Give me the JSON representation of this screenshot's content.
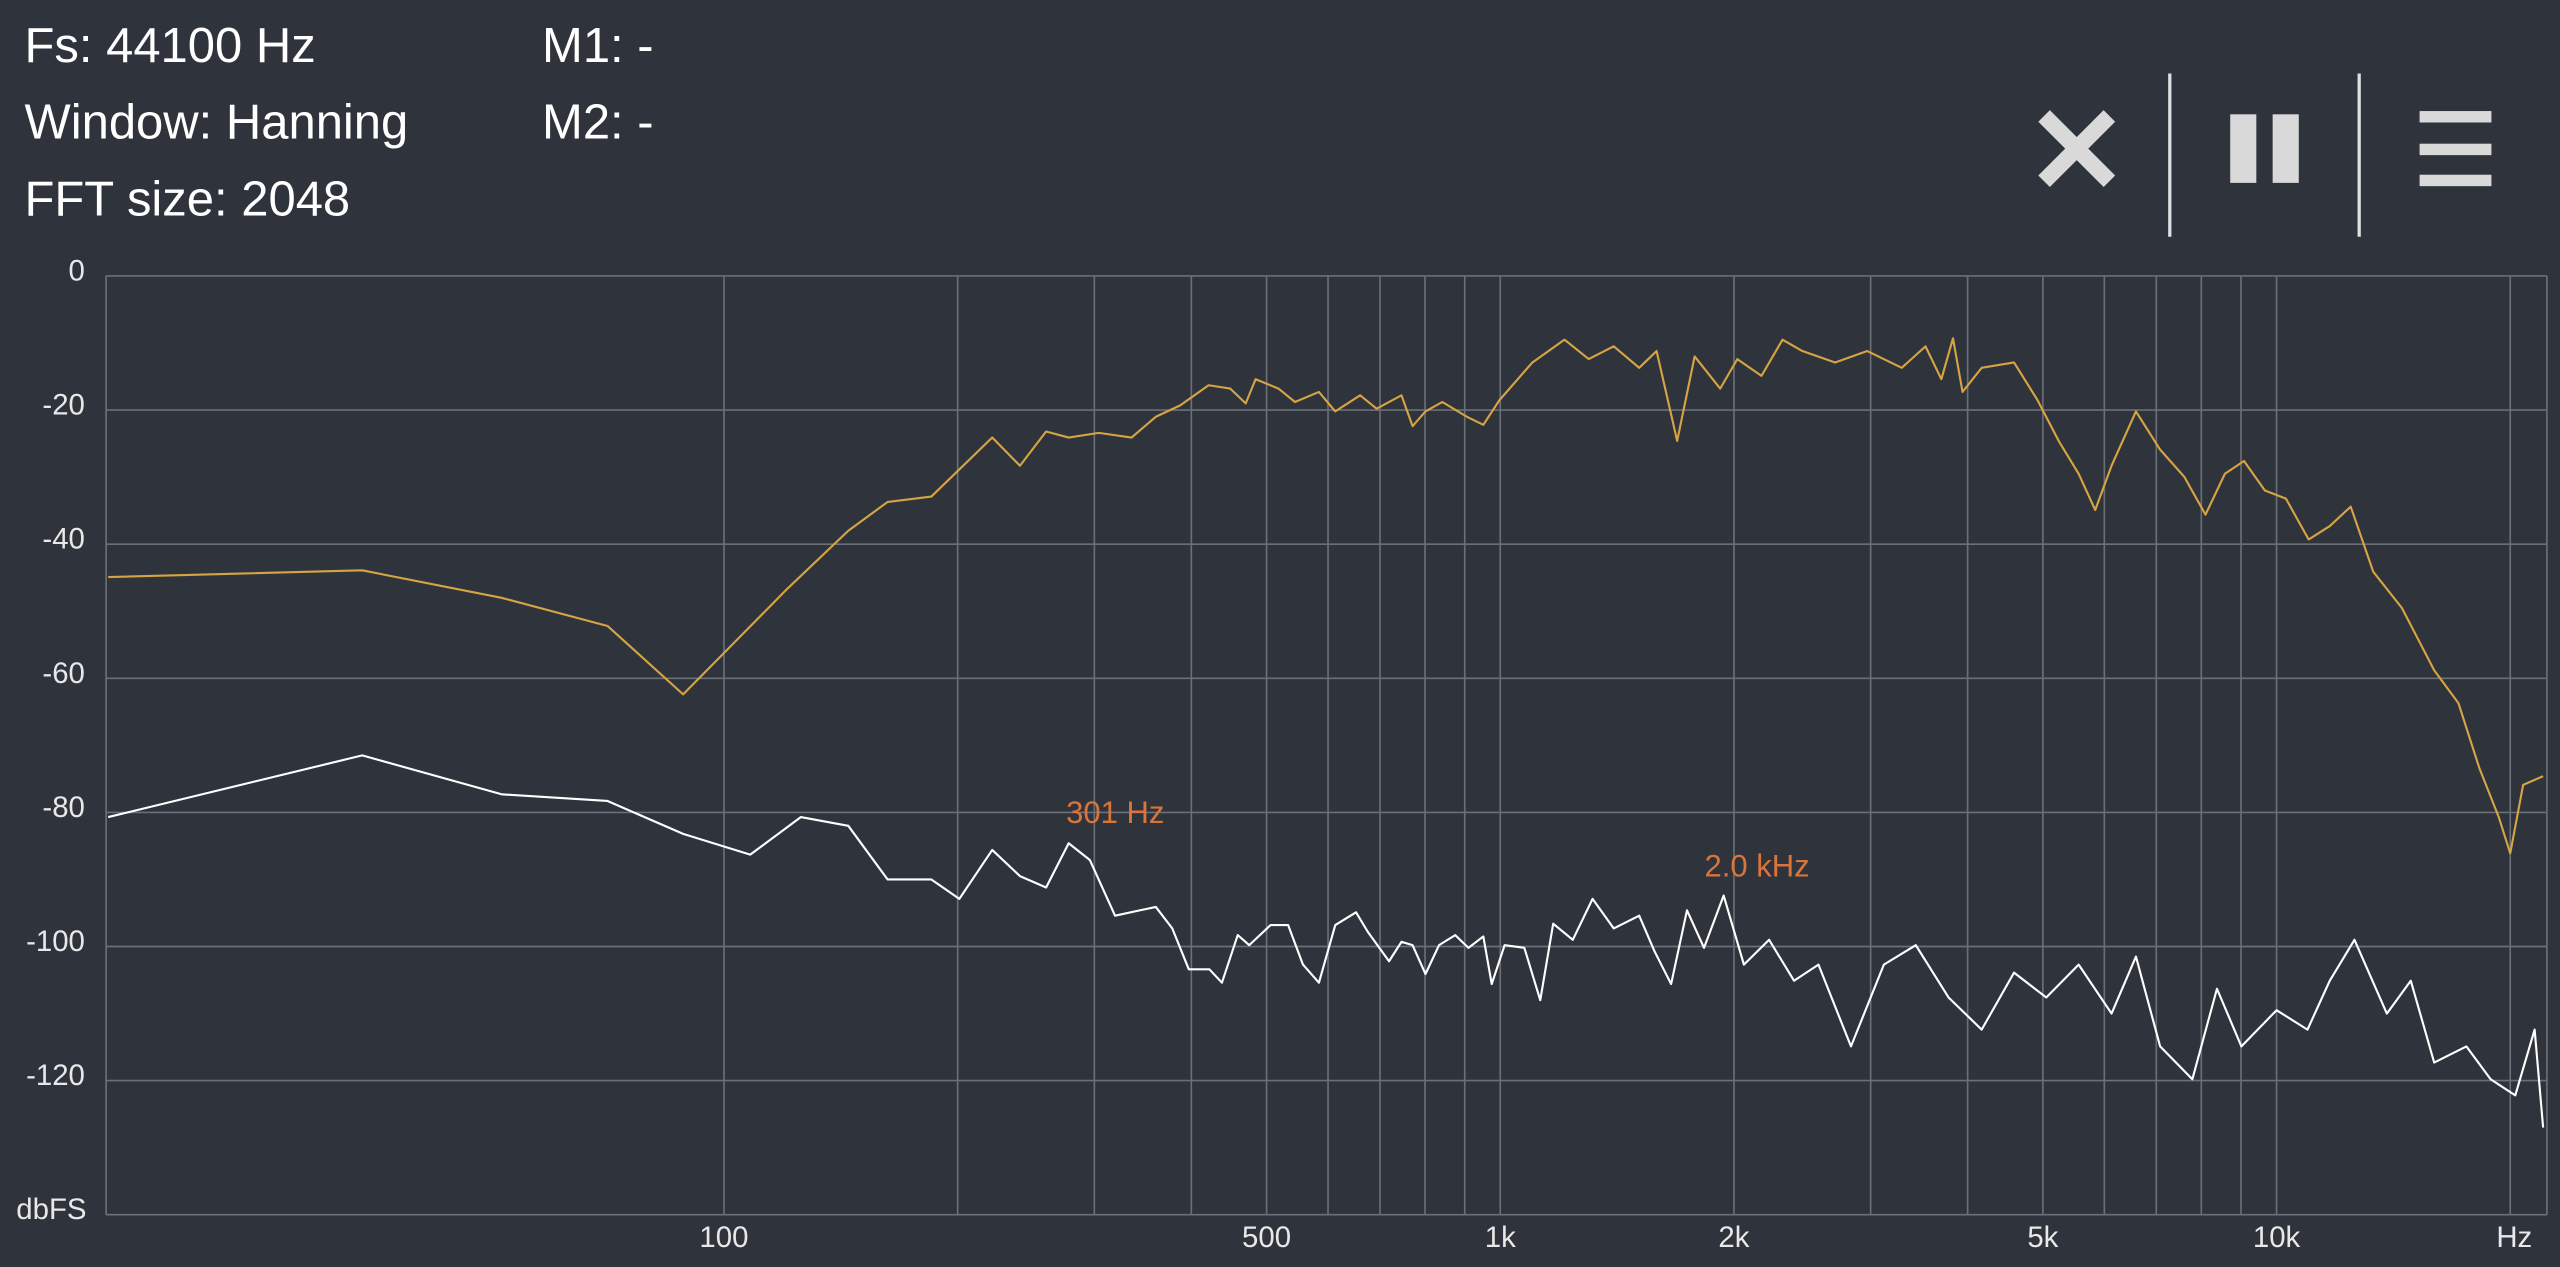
{
  "header": {
    "fs": "Fs: 44100 Hz",
    "window": "Window: Hanning",
    "fft_size": "FFT size: 2048",
    "m1": "M1: -",
    "m2": "M2: -"
  },
  "chart_data": {
    "type": "line",
    "log_x": true,
    "grid": true,
    "xlabel": "Hz",
    "ylabel": "dbFS",
    "xlim": [
      16,
      22300
    ],
    "ylim": [
      -140,
      0
    ],
    "yticks": [
      -120,
      -100,
      -80,
      -60,
      -40,
      -20,
      0
    ],
    "xticks": [
      100,
      500,
      {
        "value": 1000,
        "label": "1k"
      },
      {
        "value": 2000,
        "label": "2k"
      },
      {
        "value": 5000,
        "label": "5k"
      },
      {
        "value": 10000,
        "label": "10k"
      }
    ],
    "xgrid": [
      200,
      300,
      400,
      600,
      700,
      800,
      900,
      3000,
      4000,
      6000,
      7000,
      8000,
      9000,
      20000
    ],
    "annotations": [
      {
        "text": "301 Hz",
        "x": 301,
        "y": -84
      },
      {
        "text": "2.0  kHz",
        "x": 2000,
        "y": -92
      }
    ],
    "series": [
      {
        "color": "#d6a443",
        "x": [
          16.1,
          34.2,
          51.7,
          70.8,
          88.6,
          120.8,
          144.6,
          162.5,
          185,
          221.6,
          240.6,
          260,
          278,
          304,
          335,
          360,
          387,
          421,
          449,
          470,
          484,
          518,
          544,
          584,
          613,
          660,
          693,
          746,
          771,
          801,
          842,
          906,
          951,
          998,
          1100,
          1210,
          1300,
          1400,
          1510,
          1590,
          1690,
          1780,
          1920,
          2020,
          2170,
          2310,
          2450,
          2700,
          2970,
          3290,
          3530,
          3700,
          3830,
          3940,
          4170,
          4590,
          4920,
          5240,
          5560,
          5840,
          6130,
          6590,
          7080,
          7610,
          8100,
          8580,
          9080,
          9660,
          10280,
          11000,
          11710,
          12460,
          13320,
          14500,
          15960,
          17150,
          18250,
          19330,
          20000,
          20780,
          22050
        ],
        "values": [
          -44.9,
          -43.9,
          -48,
          -52.2,
          -62.4,
          -46.6,
          -38,
          -33.7,
          -32.9,
          -24.1,
          -28.3,
          -23.2,
          -24.1,
          -23.4,
          -24.1,
          -21,
          -19.3,
          -16.3,
          -16.8,
          -19,
          -15.4,
          -16.8,
          -18.8,
          -17.3,
          -20.2,
          -17.8,
          -19.8,
          -17.8,
          -22.4,
          -20.2,
          -18.8,
          -21,
          -22.2,
          -18.5,
          -12.9,
          -9.5,
          -12.4,
          -10.5,
          -13.7,
          -11.2,
          -24.6,
          -12,
          -16.8,
          -12.4,
          -14.9,
          -9.5,
          -11.2,
          -12.9,
          -11.2,
          -13.7,
          -10.5,
          -15.4,
          -9.3,
          -17.3,
          -13.7,
          -12.9,
          -18.5,
          -24.6,
          -29.5,
          -34.9,
          -28.3,
          -20.2,
          -25.9,
          -30,
          -35.6,
          -29.5,
          -27.6,
          -32,
          -33.2,
          -39.3,
          -37.3,
          -34.4,
          -44.1,
          -49.5,
          -58.8,
          -63.7,
          -73.4,
          -80.7,
          -86.1,
          -75.9,
          -74.6
        ]
      },
      {
        "color": "#ffffff",
        "x": [
          16.1,
          34.2,
          51.7,
          70.8,
          88.6,
          108.1,
          125.6,
          144.6,
          162.5,
          185,
          201,
          221.6,
          240.6,
          260,
          278,
          296,
          319,
          360,
          378,
          397,
          422,
          438,
          459,
          475,
          506,
          533,
          557,
          584,
          613,
          652,
          675,
          719,
          746,
          771,
          801,
          834,
          875,
          910,
          951,
          975,
          1013,
          1074,
          1126,
          1170,
          1240,
          1315,
          1400,
          1510,
          1580,
          1660,
          1740,
          1830,
          1940,
          2060,
          2220,
          2390,
          2570,
          2830,
          3120,
          3430,
          3780,
          4170,
          4590,
          5050,
          5560,
          6130,
          6590,
          7080,
          7790,
          8380,
          9010,
          10000,
          10960,
          11710,
          12600,
          13870,
          14890,
          15960,
          17560,
          18870,
          20300,
          21500,
          22050
        ],
        "values": [
          -80.7,
          -71.5,
          -77.3,
          -78.3,
          -83.2,
          -86.3,
          -80.7,
          -82,
          -90,
          -90,
          -92.9,
          -85.6,
          -89.5,
          -91.2,
          -84.6,
          -87.1,
          -95.4,
          -94.1,
          -97.3,
          -103.4,
          -103.4,
          -105.4,
          -98.3,
          -99.8,
          -96.8,
          -96.8,
          -102.7,
          -105.4,
          -96.8,
          -94.9,
          -97.8,
          -102.2,
          -99.3,
          -99.8,
          -104.1,
          -99.8,
          -98.3,
          -100.2,
          -98.5,
          -105.6,
          -99.8,
          -100.2,
          -108,
          -96.6,
          -99,
          -92.9,
          -97.3,
          -95.4,
          -100.7,
          -105.6,
          -94.6,
          -100.2,
          -92.4,
          -102.7,
          -99,
          -105.1,
          -102.7,
          -114.9,
          -102.7,
          -99.8,
          -107.6,
          -112.4,
          -103.9,
          -107.6,
          -102.7,
          -110,
          -101.5,
          -114.9,
          -119.8,
          -106.3,
          -114.9,
          -109.5,
          -112.4,
          -105.1,
          -99,
          -110,
          -105.1,
          -117.3,
          -114.9,
          -119.8,
          -122.2,
          -112.4,
          -127
        ]
      }
    ]
  }
}
